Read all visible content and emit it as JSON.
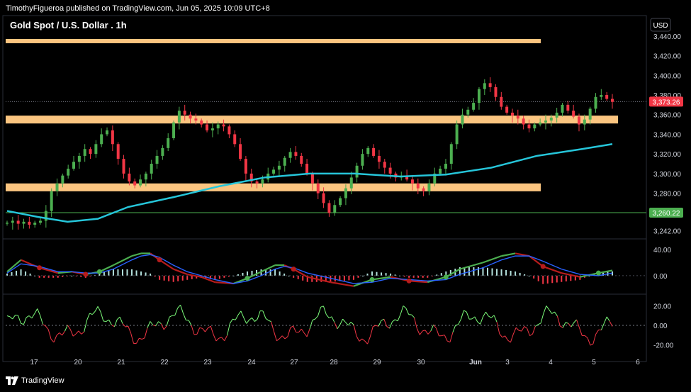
{
  "header": {
    "published": "TimothyFigueroa published on TradingView.com, Jun 05, 2025 10:09 UTC+8"
  },
  "footer": {
    "brand": "TradingView"
  },
  "chart_data": [
    {
      "type": "candlestick",
      "title": "Gold Spot / U.S. Dollar . 1h",
      "currency": "USD",
      "ylim": [
        3235,
        3455
      ],
      "y_ticks": [
        "3,440.00",
        "3,420.00",
        "3,400.00",
        "3,380.00",
        "3,360.00",
        "3,340.00",
        "3,320.00",
        "3,300.00",
        "3,280.00",
        "3,242.00"
      ],
      "y_tick_values": [
        3440,
        3420,
        3400,
        3380,
        3360,
        3340,
        3320,
        3300,
        3280,
        3242
      ],
      "x_ticks": [
        "17",
        "20",
        "21",
        "22",
        "23",
        "24",
        "27",
        "28",
        "29",
        "30",
        "Jun",
        "3",
        "4",
        "5",
        "6"
      ],
      "last_price": {
        "label": "3,373.26",
        "value": 3373.26,
        "color": "#f23645"
      },
      "level_line": {
        "label": "3,260.22",
        "value": 3260.22,
        "color": "#4caf50"
      },
      "zones": [
        {
          "low": 3433,
          "high": 3437,
          "to_index": 12
        },
        {
          "low": 3351,
          "high": 3359,
          "to_index": 14
        },
        {
          "low": 3282,
          "high": 3290,
          "to_index": 12
        }
      ],
      "close_path": [
        3250,
        3252,
        3249,
        3251,
        3248,
        3250,
        3252,
        3262,
        3282,
        3290,
        3298,
        3305,
        3312,
        3318,
        3325,
        3320,
        3330,
        3340,
        3344,
        3330,
        3315,
        3300,
        3292,
        3288,
        3294,
        3300,
        3310,
        3318,
        3326,
        3336,
        3352,
        3364,
        3360,
        3356,
        3354,
        3350,
        3344,
        3346,
        3350,
        3348,
        3340,
        3330,
        3315,
        3300,
        3292,
        3290,
        3294,
        3300,
        3304,
        3308,
        3316,
        3322,
        3318,
        3310,
        3300,
        3290,
        3280,
        3270,
        3260,
        3268,
        3275,
        3285,
        3296,
        3308,
        3320,
        3326,
        3318,
        3312,
        3306,
        3300,
        3296,
        3298,
        3294,
        3290,
        3285,
        3282,
        3290,
        3300,
        3305,
        3310,
        3330,
        3350,
        3360,
        3365,
        3372,
        3386,
        3392,
        3388,
        3378,
        3368,
        3362,
        3359,
        3356,
        3350,
        3346,
        3350,
        3352,
        3354,
        3357,
        3362,
        3370,
        3364,
        3358,
        3350,
        3355,
        3366,
        3378,
        3380,
        3376,
        3373
      ],
      "ma": {
        "color": "#26c6da",
        "points": [
          [
            0,
            3262
          ],
          [
            10,
            3256
          ],
          [
            20,
            3251
          ],
          [
            30,
            3254
          ],
          [
            40,
            3266
          ],
          [
            55,
            3276
          ],
          [
            70,
            3287
          ],
          [
            85,
            3296
          ],
          [
            100,
            3300
          ],
          [
            115,
            3300
          ],
          [
            130,
            3297
          ],
          [
            145,
            3299
          ],
          [
            160,
            3306
          ],
          [
            175,
            3318
          ],
          [
            190,
            3325
          ],
          [
            200,
            3330
          ]
        ]
      },
      "colors": {
        "up": "#4caf50",
        "down": "#f23645",
        "zone": "#fbc580"
      }
    },
    {
      "type": "line",
      "name": "oscillator",
      "ylim": [
        -25,
        55
      ],
      "y_ticks": [
        "40.00",
        "0.00"
      ],
      "y_tick_values": [
        40,
        0
      ],
      "series": [
        {
          "color": "#26a69a",
          "points": [
            [
              0,
              6
            ],
            [
              6,
              24
            ],
            [
              14,
              12
            ],
            [
              22,
              4
            ],
            [
              28,
              6
            ],
            [
              34,
              2
            ],
            [
              40,
              6
            ],
            [
              46,
              16
            ],
            [
              54,
              30
            ],
            [
              58,
              34
            ],
            [
              62,
              34
            ],
            [
              66,
              24
            ],
            [
              72,
              10
            ],
            [
              78,
              2
            ],
            [
              84,
              -2
            ],
            [
              90,
              -10
            ],
            [
              98,
              -12
            ],
            [
              104,
              -4
            ],
            [
              110,
              6
            ],
            [
              116,
              16
            ],
            [
              120,
              16
            ],
            [
              124,
              10
            ],
            [
              130,
              -2
            ],
            [
              140,
              -10
            ],
            [
              150,
              -16
            ],
            [
              158,
              -6
            ],
            [
              166,
              -2
            ],
            [
              174,
              -8
            ],
            [
              182,
              -10
            ],
            [
              190,
              -2
            ],
            [
              196,
              10
            ],
            [
              206,
              20
            ],
            [
              214,
              30
            ],
            [
              220,
              34
            ],
            [
              226,
              30
            ],
            [
              232,
              14
            ],
            [
              240,
              4
            ],
            [
              248,
              -2
            ],
            [
              256,
              4
            ],
            [
              262,
              8
            ]
          ]
        },
        {
          "color": "#2962ff",
          "points": [
            [
              0,
              4
            ],
            [
              6,
              18
            ],
            [
              14,
              14
            ],
            [
              22,
              6
            ],
            [
              28,
              6
            ],
            [
              34,
              4
            ],
            [
              40,
              4
            ],
            [
              46,
              10
            ],
            [
              54,
              24
            ],
            [
              58,
              30
            ],
            [
              62,
              32
            ],
            [
              66,
              28
            ],
            [
              72,
              16
            ],
            [
              78,
              6
            ],
            [
              84,
              0
            ],
            [
              90,
              -6
            ],
            [
              98,
              -12
            ],
            [
              104,
              -8
            ],
            [
              110,
              0
            ],
            [
              116,
              10
            ],
            [
              120,
              14
            ],
            [
              124,
              12
            ],
            [
              130,
              4
            ],
            [
              140,
              -4
            ],
            [
              150,
              -12
            ],
            [
              158,
              -10
            ],
            [
              166,
              -4
            ],
            [
              174,
              -6
            ],
            [
              182,
              -8
            ],
            [
              190,
              -6
            ],
            [
              196,
              2
            ],
            [
              206,
              12
            ],
            [
              214,
              24
            ],
            [
              220,
              30
            ],
            [
              226,
              30
            ],
            [
              232,
              22
            ],
            [
              240,
              10
            ],
            [
              248,
              2
            ],
            [
              256,
              0
            ],
            [
              262,
              4
            ]
          ]
        }
      ],
      "histogram_up": "#b2dfdb",
      "histogram_down": "#f23645",
      "cross_up": "#4caf50",
      "cross_down": "#b71c1c"
    },
    {
      "type": "line",
      "name": "momentum",
      "ylim": [
        -30,
        30
      ],
      "y_ticks": [
        "20.00",
        "0.00",
        "-20.00"
      ],
      "y_tick_values": [
        20,
        0,
        -20
      ],
      "zero_line": true,
      "colors": {
        "up": "#7CFC7A",
        "down": "#f23645"
      }
    }
  ]
}
